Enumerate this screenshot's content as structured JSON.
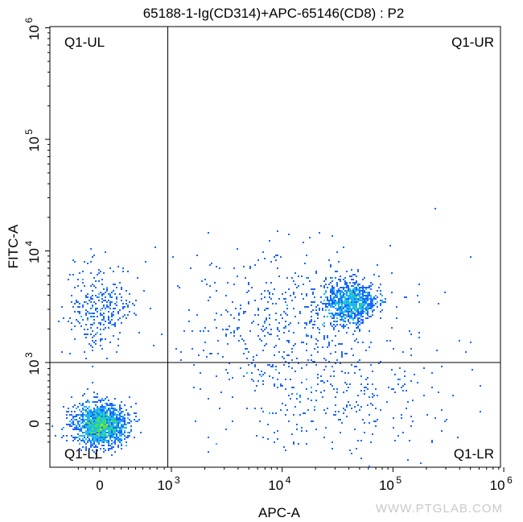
{
  "chart_data": {
    "type": "scatter",
    "title": "65188-1-Ig(CD314)+APC-65146(CD8) : P2",
    "xlabel": "APC-A",
    "ylabel": "FITC-A",
    "x_scale": "biexponential",
    "y_scale": "biexponential",
    "xlim": [
      -400,
      1000000
    ],
    "ylim": [
      -400,
      1000000
    ],
    "x_ticks": [
      {
        "base": "0",
        "exp": ""
      },
      {
        "base": "10",
        "exp": "3"
      },
      {
        "base": "10",
        "exp": "4"
      },
      {
        "base": "10",
        "exp": "5"
      },
      {
        "base": "10",
        "exp": "6"
      }
    ],
    "y_ticks": [
      {
        "base": "0",
        "exp": ""
      },
      {
        "base": "10",
        "exp": "3"
      },
      {
        "base": "10",
        "exp": "4"
      },
      {
        "base": "10",
        "exp": "5"
      },
      {
        "base": "10",
        "exp": "6"
      }
    ],
    "gate": {
      "x": 950,
      "y": 1000
    },
    "quadrants": [
      "Q1-UL",
      "Q1-UR",
      "Q1-LL",
      "Q1-LR"
    ],
    "populations": [
      {
        "name": "",
        "x_center": 0,
        "y_center": 0,
        "spread": "dense",
        "approx_events": 1600
      },
      {
        "name": "",
        "x_center": 0,
        "y_center": 3000,
        "spread": "moderate",
        "approx_events": 300
      },
      {
        "name": "",
        "x_center": 40000,
        "y_center": 3500,
        "spread": "dense",
        "approx_events": 900
      },
      {
        "name": "",
        "x_center": 12000,
        "y_center": 2500,
        "spread": "sparse",
        "approx_events": 500
      },
      {
        "name": "",
        "x_center": 30000,
        "y_center": 500,
        "spread": "sparse",
        "approx_events": 300
      }
    ],
    "colormap": [
      "#1010c8",
      "#1e64ff",
      "#1eb4ff",
      "#20d8a0",
      "#60e040",
      "#c8e020"
    ]
  },
  "watermark": "WWW.PTGLAB.COM"
}
